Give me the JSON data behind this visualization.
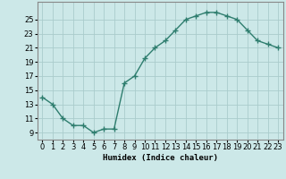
{
  "xlabel": "Humidex (Indice chaleur)",
  "x": [
    0,
    1,
    2,
    3,
    4,
    5,
    6,
    7,
    8,
    9,
    10,
    11,
    12,
    13,
    14,
    15,
    16,
    17,
    18,
    19,
    20,
    21,
    22,
    23
  ],
  "y": [
    14.0,
    13.0,
    11.0,
    10.0,
    10.0,
    9.0,
    9.5,
    9.5,
    16.0,
    17.0,
    19.5,
    21.0,
    22.0,
    23.5,
    25.0,
    25.5,
    26.0,
    26.0,
    25.5,
    25.0,
    23.5,
    22.0,
    21.5,
    21.0
  ],
  "line_color": "#2e7d6e",
  "marker": "+",
  "marker_size": 4,
  "bg_color": "#cce8e8",
  "grid_color": "#aacccc",
  "xlim": [
    -0.5,
    23.5
  ],
  "ylim": [
    8.0,
    27.5
  ],
  "yticks": [
    9,
    11,
    13,
    15,
    17,
    19,
    21,
    23,
    25
  ],
  "xtick_labels": [
    "0",
    "1",
    "2",
    "3",
    "4",
    "5",
    "6",
    "7",
    "8",
    "9",
    "10",
    "11",
    "12",
    "13",
    "14",
    "15",
    "16",
    "17",
    "18",
    "19",
    "20",
    "21",
    "22",
    "23"
  ],
  "xlabel_fontsize": 6.5,
  "tick_fontsize": 6,
  "line_width": 1.0
}
